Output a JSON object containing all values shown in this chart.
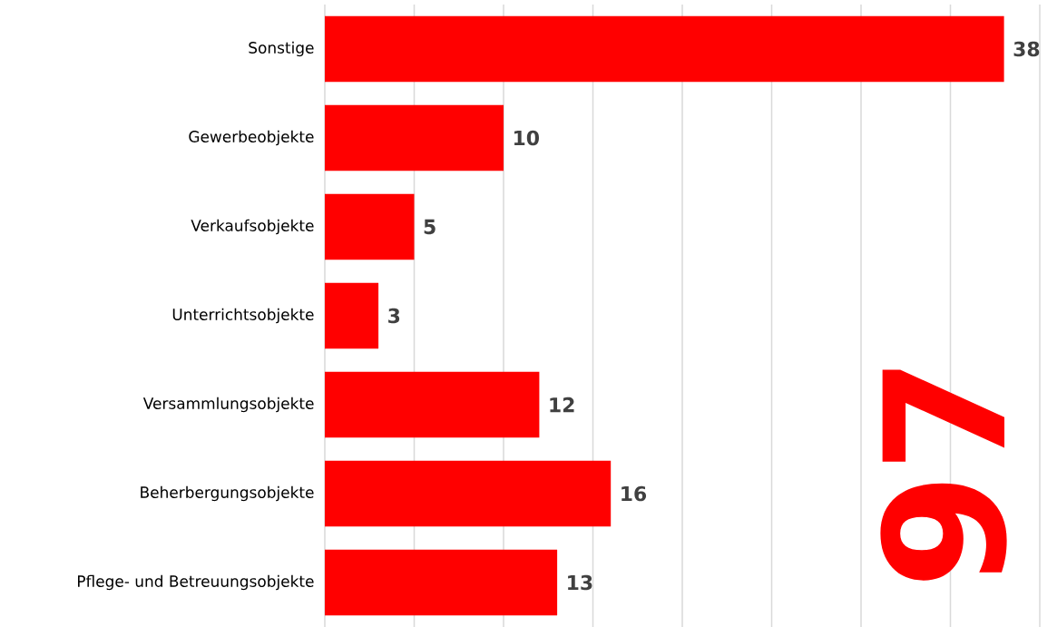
{
  "chart_data": {
    "type": "bar",
    "orientation": "horizontal",
    "categories": [
      "Sonstige",
      "Gewerbeobjekte",
      "Verkaufsobjekte",
      "Unterrichtsobjekte",
      "Versammlungsobjekte",
      "Beherbergungsobjekte",
      "Pflege- und Betreuungsobjekte"
    ],
    "values": [
      38,
      10,
      5,
      3,
      12,
      16,
      13
    ],
    "color": "#ff0000",
    "xlim": [
      0,
      40
    ],
    "xticks": [
      {
        "value": 0,
        "label": null
      },
      {
        "value": 5,
        "label": null
      },
      {
        "value": 10,
        "label": null
      },
      {
        "value": 15,
        "label": null
      },
      {
        "value": 20,
        "label": null
      },
      {
        "value": 25,
        "label": null
      },
      {
        "value": 30,
        "label": null
      },
      {
        "value": 35,
        "label": null
      },
      {
        "value": 40,
        "label": null
      }
    ],
    "grid": "x",
    "tick_labels": "y",
    "data_labels": true,
    "annotations": [
      "97"
    ]
  }
}
